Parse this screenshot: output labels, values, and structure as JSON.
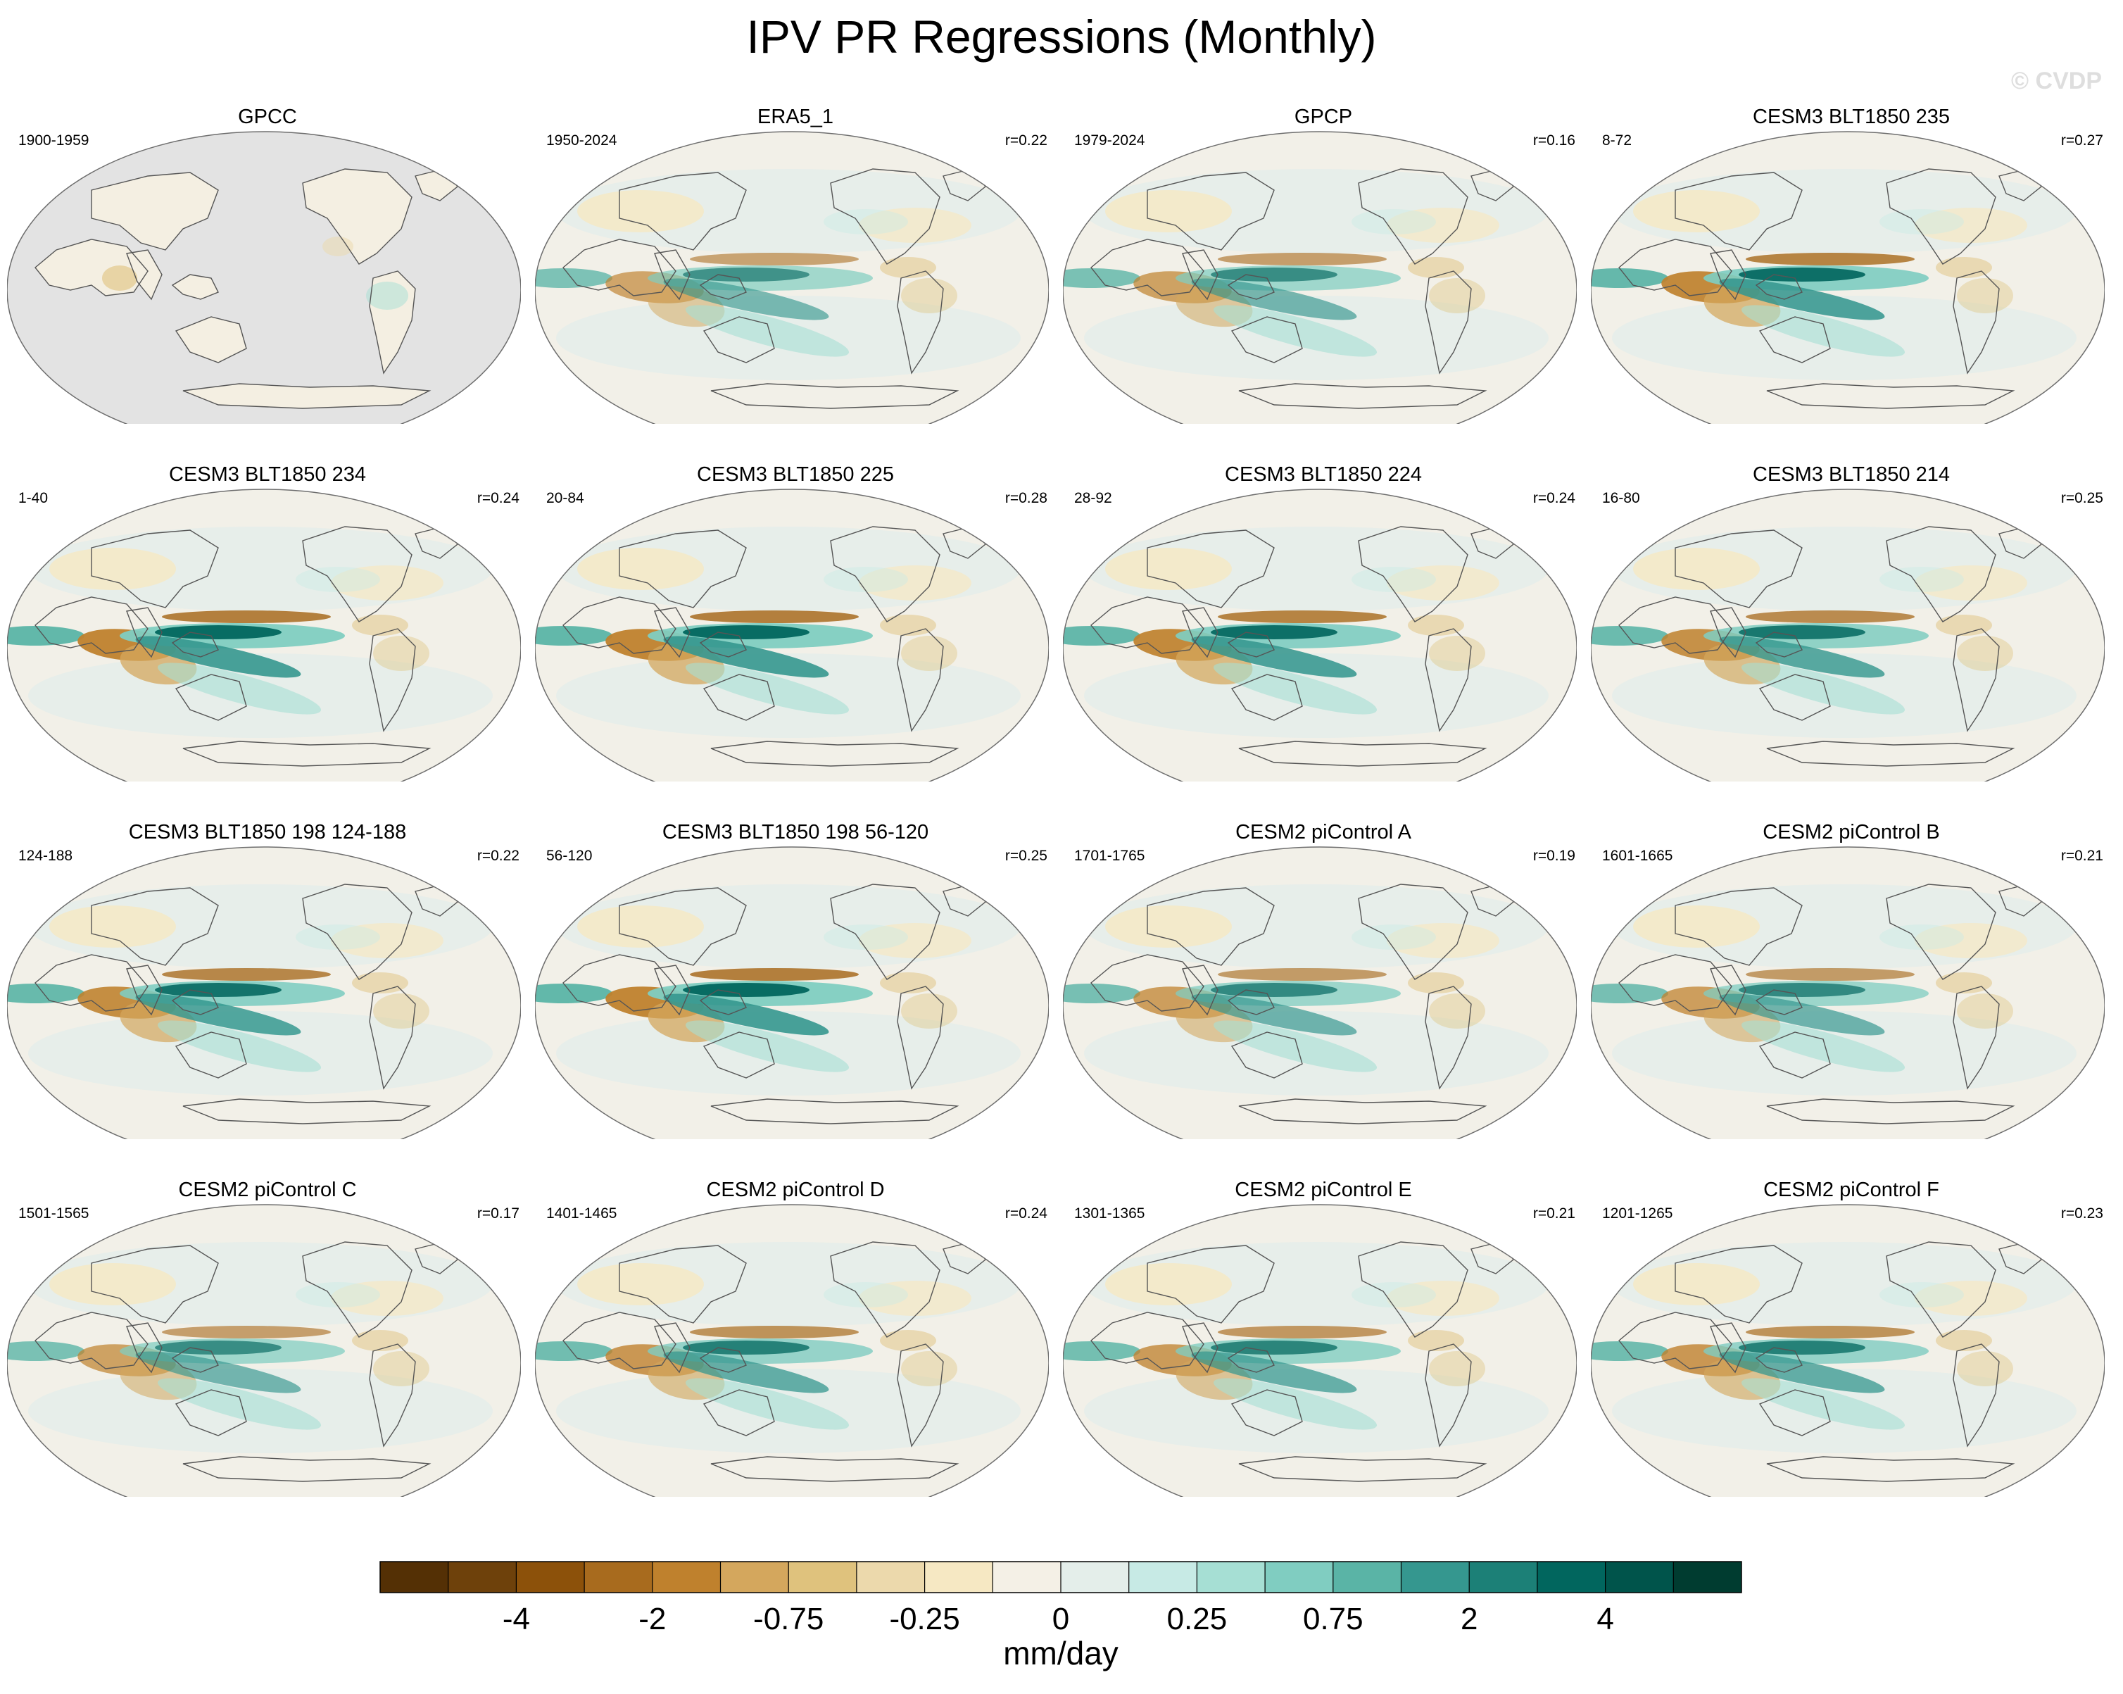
{
  "title": "IPV PR Regressions (Monthly)",
  "watermark": "© CVDP",
  "chart_data": {
    "type": "map-panels",
    "projection": "global Robinson, Pacific-centered",
    "variable": "precipitation regression on IPV index",
    "units": "mm/day",
    "colorbar": {
      "tick_labels": [
        "-4",
        "-2",
        "-0.75",
        "-0.25",
        "0",
        "0.25",
        "0.75",
        "2",
        "4"
      ],
      "label": "mm/day",
      "colors": [
        "#543005",
        "#6e410b",
        "#8c510a",
        "#a86b1e",
        "#bf812d",
        "#d4a75d",
        "#dfc27d",
        "#ecd9ac",
        "#f6e8c3",
        "#f4f0e6",
        "#e4eeea",
        "#c7eae5",
        "#a6dfd4",
        "#80cdc1",
        "#5ab4a6",
        "#35978f",
        "#1c8077",
        "#01665e",
        "#00544b",
        "#003c30"
      ]
    },
    "panels": [
      {
        "title": "GPCC",
        "period": "1900-1959",
        "r": "",
        "land_only": true,
        "strength": 0.25
      },
      {
        "title": "ERA5_1",
        "period": "1950-2024",
        "r": "r=0.22",
        "land_only": false,
        "strength": 0.55
      },
      {
        "title": "GPCP",
        "period": "1979-2024",
        "r": "r=0.16",
        "land_only": false,
        "strength": 0.6
      },
      {
        "title": "CESM3 BLT1850 235",
        "period": "8-72",
        "r": "r=0.27",
        "land_only": false,
        "strength": 0.95
      },
      {
        "title": "CESM3 BLT1850 234",
        "period": "1-40",
        "r": "r=0.24",
        "land_only": false,
        "strength": 1.0
      },
      {
        "title": "CESM3 BLT1850 225",
        "period": "20-84",
        "r": "r=0.28",
        "land_only": false,
        "strength": 1.0
      },
      {
        "title": "CESM3 BLT1850 224",
        "period": "28-92",
        "r": "r=0.24",
        "land_only": false,
        "strength": 0.95
      },
      {
        "title": "CESM3 BLT1850 214",
        "period": "16-80",
        "r": "r=0.25",
        "land_only": false,
        "strength": 0.85
      },
      {
        "title": "CESM3 BLT1850 198 124-188",
        "period": "124-188",
        "r": "r=0.22",
        "land_only": false,
        "strength": 0.9
      },
      {
        "title": "CESM3 BLT1850 198 56-120",
        "period": "56-120",
        "r": "r=0.25",
        "land_only": false,
        "strength": 1.0
      },
      {
        "title": "CESM2 piControl A",
        "period": "1701-1765",
        "r": "r=0.19",
        "land_only": false,
        "strength": 0.65
      },
      {
        "title": "CESM2 piControl B",
        "period": "1601-1665",
        "r": "r=0.21",
        "land_only": false,
        "strength": 0.65
      },
      {
        "title": "CESM2 piControl C",
        "period": "1501-1565",
        "r": "r=0.17",
        "land_only": false,
        "strength": 0.6
      },
      {
        "title": "CESM2 piControl D",
        "period": "1401-1465",
        "r": "r=0.24",
        "land_only": false,
        "strength": 0.75
      },
      {
        "title": "CESM2 piControl E",
        "period": "1301-1365",
        "r": "r=0.21",
        "land_only": false,
        "strength": 0.7
      },
      {
        "title": "CESM2 piControl F",
        "period": "1201-1265",
        "r": "r=0.23",
        "land_only": false,
        "strength": 0.75
      }
    ]
  }
}
